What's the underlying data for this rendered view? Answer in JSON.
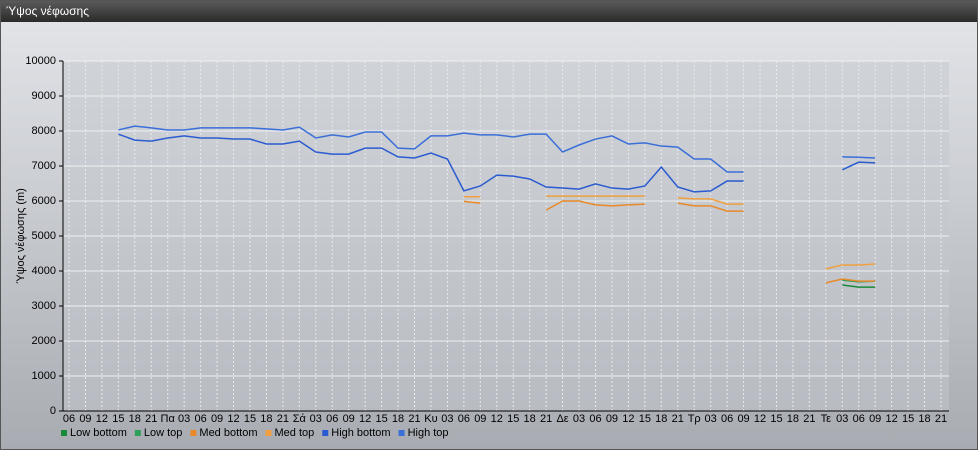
{
  "window_title": "Ύψος νέφωσης",
  "chart_data": {
    "type": "line",
    "ylabel": "Ύψος νέφωσης (m)",
    "categories": [
      "06",
      "09",
      "12",
      "15",
      "18",
      "21",
      "Πα",
      "03",
      "06",
      "09",
      "12",
      "15",
      "18",
      "21",
      "Σά",
      "03",
      "06",
      "09",
      "12",
      "15",
      "18",
      "21",
      "Κυ",
      "03",
      "06",
      "09",
      "12",
      "15",
      "18",
      "21",
      "Δε",
      "03",
      "06",
      "09",
      "12",
      "15",
      "18",
      "21",
      "Τρ",
      "03",
      "06",
      "09",
      "12",
      "15",
      "18",
      "21",
      "Τε",
      "03",
      "06",
      "09",
      "12",
      "15",
      "18",
      "21"
    ],
    "ylim": [
      0,
      10000
    ],
    "yticks": [
      0,
      1000,
      2000,
      3000,
      4000,
      5000,
      6000,
      7000,
      8000,
      9000,
      10000
    ],
    "grid": true,
    "legend": "bottom",
    "series": [
      {
        "name": "Low bottom",
        "color": "#1a8a3a",
        "values": [
          null,
          null,
          null,
          null,
          null,
          null,
          null,
          null,
          null,
          null,
          null,
          null,
          null,
          null,
          null,
          null,
          null,
          null,
          null,
          null,
          null,
          null,
          null,
          null,
          null,
          null,
          null,
          null,
          null,
          null,
          null,
          null,
          null,
          null,
          null,
          null,
          null,
          null,
          null,
          null,
          null,
          null,
          null,
          null,
          null,
          null,
          null,
          3600,
          3540,
          3540,
          null,
          null,
          null,
          null
        ]
      },
      {
        "name": "Low top",
        "color": "#2e9e5b",
        "values": [
          null,
          null,
          null,
          null,
          null,
          null,
          null,
          null,
          null,
          null,
          null,
          null,
          null,
          null,
          null,
          null,
          null,
          null,
          null,
          null,
          null,
          null,
          null,
          null,
          null,
          null,
          null,
          null,
          null,
          null,
          null,
          null,
          null,
          null,
          null,
          null,
          null,
          null,
          null,
          null,
          null,
          null,
          null,
          null,
          null,
          null,
          null,
          3740,
          3690,
          3710,
          null,
          null,
          null,
          null
        ]
      },
      {
        "name": "Med bottom",
        "color": "#e8892a",
        "values": [
          null,
          null,
          null,
          null,
          null,
          null,
          null,
          null,
          null,
          null,
          null,
          null,
          null,
          null,
          null,
          null,
          null,
          null,
          null,
          null,
          null,
          null,
          null,
          null,
          5990,
          5940,
          null,
          null,
          null,
          5740,
          6000,
          6000,
          5890,
          5860,
          5890,
          5910,
          null,
          5940,
          5860,
          5860,
          5710,
          5710,
          null,
          null,
          null,
          null,
          3660,
          3770,
          3710,
          3710,
          null,
          null,
          null,
          null
        ]
      },
      {
        "name": "Med top",
        "color": "#f0a040",
        "values": [
          null,
          null,
          null,
          null,
          null,
          null,
          null,
          null,
          null,
          null,
          null,
          null,
          null,
          null,
          null,
          null,
          null,
          null,
          null,
          null,
          null,
          null,
          null,
          null,
          6120,
          6120,
          null,
          null,
          null,
          6140,
          6140,
          6140,
          6140,
          6140,
          6140,
          6140,
          null,
          6090,
          6060,
          6060,
          5910,
          5910,
          null,
          null,
          null,
          null,
          4060,
          4170,
          4170,
          4200,
          null,
          null,
          null,
          null
        ]
      },
      {
        "name": "High bottom",
        "color": "#2a5bd0",
        "values": [
          null,
          null,
          null,
          7910,
          7740,
          7710,
          7800,
          7860,
          7800,
          7800,
          7770,
          7770,
          7630,
          7630,
          7710,
          7400,
          7340,
          7340,
          7510,
          7510,
          7260,
          7230,
          7370,
          7200,
          6290,
          6430,
          6740,
          6710,
          6630,
          6400,
          6370,
          6340,
          6490,
          6370,
          6340,
          6430,
          6970,
          6400,
          6260,
          6290,
          6570,
          6570,
          null,
          null,
          null,
          null,
          null,
          6890,
          7110,
          7090,
          null,
          null,
          null,
          null
        ]
      },
      {
        "name": "High top",
        "color": "#3a6fd8",
        "values": [
          null,
          null,
          null,
          8030,
          8140,
          8090,
          8030,
          8030,
          8090,
          8090,
          8090,
          8090,
          8060,
          8030,
          8110,
          7800,
          7890,
          7830,
          7970,
          7970,
          7510,
          7490,
          7860,
          7860,
          7940,
          7890,
          7890,
          7830,
          7910,
          7910,
          7400,
          7600,
          7770,
          7860,
          7630,
          7660,
          7570,
          7540,
          7200,
          7200,
          6830,
          6830,
          null,
          null,
          null,
          null,
          null,
          7260,
          7250,
          7230,
          null,
          null,
          null,
          null
        ]
      }
    ]
  }
}
